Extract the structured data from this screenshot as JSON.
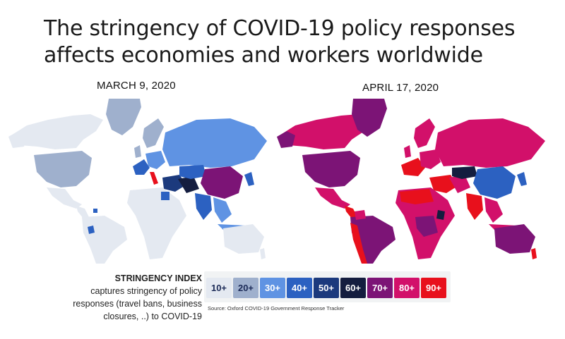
{
  "title": {
    "line1": "The stringency of COVID-19 policy responses",
    "line2": "affects economies and workers worldwide"
  },
  "maps": [
    {
      "date": "MARCH 9, 2020"
    },
    {
      "date": "APRIL 17, 2020"
    }
  ],
  "legend": {
    "heading": "STRINGENCY INDEX",
    "description_lines": [
      "captures stringency of policy",
      "responses (travel bans, business",
      "closures, ..) to COVID-19"
    ],
    "bins": [
      {
        "label": "10+",
        "color": "#e4e9f1",
        "text_color": "#1b2a57"
      },
      {
        "label": "20+",
        "color": "#9fb0cd",
        "text_color": "#1b2a57"
      },
      {
        "label": "30+",
        "color": "#5f93e3",
        "text_color": "#ffffff"
      },
      {
        "label": "40+",
        "color": "#2c61c1",
        "text_color": "#ffffff"
      },
      {
        "label": "50+",
        "color": "#1c3a7d",
        "text_color": "#ffffff"
      },
      {
        "label": "60+",
        "color": "#141d3f",
        "text_color": "#ffffff"
      },
      {
        "label": "70+",
        "color": "#7c1476",
        "text_color": "#ffffff"
      },
      {
        "label": "80+",
        "color": "#d2106a",
        "text_color": "#ffffff"
      },
      {
        "label": "90+",
        "color": "#e8101c",
        "text_color": "#ffffff"
      }
    ]
  },
  "source": "Source: Oxford COVID-19 Government Response Tracker"
}
